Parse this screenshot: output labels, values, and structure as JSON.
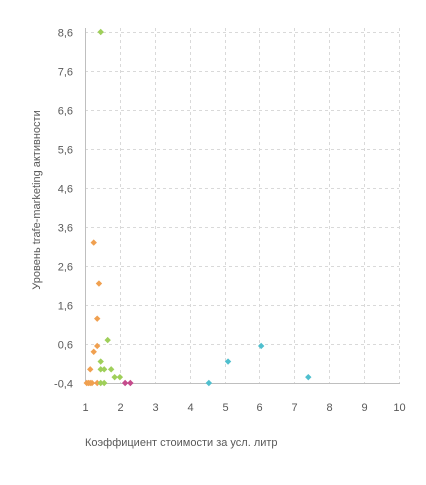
{
  "chart_data": {
    "type": "scatter",
    "title": "",
    "xlabel": "Коэффициент стоимости за усл. литр",
    "ylabel": "Уровень trafe-marketing активности",
    "xlim": [
      1,
      10
    ],
    "ylim": [
      -0.4,
      8.9
    ],
    "x_ticks": [
      "1",
      "2",
      "3",
      "4",
      "5",
      "6",
      "7",
      "8",
      "9",
      "10"
    ],
    "y_ticks": [
      "-0,4",
      "0,6",
      "1,6",
      "2,6",
      "3,6",
      "4,6",
      "5,6",
      "6,6",
      "7,6",
      "8,6"
    ],
    "grid": true,
    "legend": "none",
    "series": [
      {
        "color": "#f0a050",
        "points": [
          [
            1.05,
            -0.4
          ],
          [
            1.1,
            -0.4
          ],
          [
            1.15,
            -0.4
          ],
          [
            1.2,
            -0.4
          ],
          [
            1.35,
            -0.4
          ],
          [
            1.15,
            -0.05
          ],
          [
            1.25,
            0.4
          ],
          [
            1.35,
            0.55
          ],
          [
            1.35,
            1.25
          ],
          [
            1.4,
            2.15
          ],
          [
            1.25,
            3.2
          ]
        ]
      },
      {
        "color": "#9fcf5a",
        "points": [
          [
            1.45,
            8.6
          ],
          [
            1.45,
            -0.4
          ],
          [
            1.55,
            -0.4
          ],
          [
            1.45,
            -0.05
          ],
          [
            1.55,
            -0.05
          ],
          [
            1.75,
            -0.05
          ],
          [
            1.45,
            0.15
          ],
          [
            1.65,
            0.7
          ],
          [
            1.85,
            -0.25
          ],
          [
            2.0,
            -0.25
          ]
        ]
      },
      {
        "color": "#c54b8c",
        "points": [
          [
            2.15,
            -0.4
          ],
          [
            2.3,
            -0.4
          ]
        ]
      },
      {
        "color": "#4fbfce",
        "points": [
          [
            4.55,
            -0.4
          ],
          [
            5.1,
            0.15
          ],
          [
            6.05,
            0.55
          ],
          [
            7.4,
            -0.25
          ]
        ]
      }
    ]
  }
}
